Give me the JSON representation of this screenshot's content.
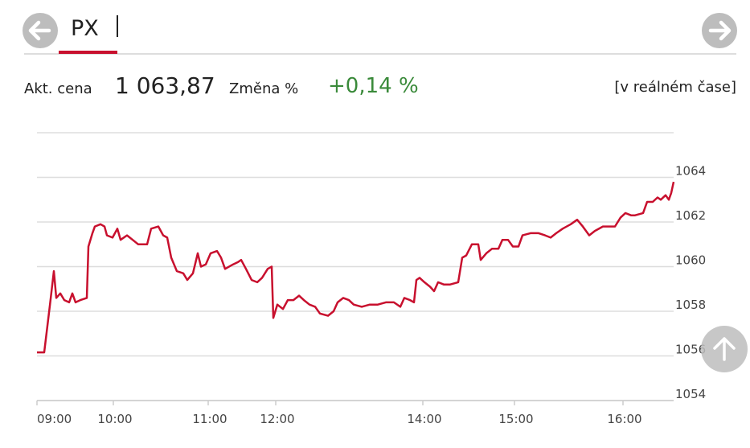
{
  "header": {
    "title": "PX",
    "price_label": "Akt. cena",
    "price": "1 063,87",
    "change_label": "Změna %",
    "change": "+0,14 %",
    "realtime": "[v reálném čase]"
  },
  "chart_data": {
    "type": "line",
    "color": "#c8102e",
    "grid": true,
    "x": [
      0,
      9,
      16,
      21,
      24,
      29,
      34,
      40,
      44,
      48,
      54,
      62,
      64,
      69,
      72,
      79,
      84,
      87,
      94,
      100,
      104,
      112,
      119,
      126,
      137,
      142,
      151,
      157,
      162,
      167,
      174,
      182,
      187,
      194,
      200,
      204,
      210,
      216,
      224,
      229,
      234,
      244,
      250,
      254,
      260,
      267,
      274,
      280,
      287,
      292,
      294,
      299,
      306,
      312,
      319,
      326,
      332,
      339,
      346,
      352,
      362,
      369,
      374,
      381,
      388,
      394,
      404,
      414,
      424,
      434,
      444,
      452,
      457,
      464,
      469,
      472,
      476,
      482,
      489,
      494,
      499,
      506,
      514,
      524,
      529,
      534,
      541,
      549,
      552,
      559,
      566,
      574,
      579,
      586,
      592,
      599,
      604,
      614,
      624,
      632,
      639,
      646,
      654,
      664,
      672,
      679,
      687,
      694,
      704,
      712,
      719,
      726,
      732,
      739,
      744,
      754,
      759,
      766,
      772,
      776,
      782,
      786,
      789,
      792
    ],
    "values": [
      1056.16,
      1056.16,
      1058.25,
      1059.8,
      1058.6,
      1058.8,
      1058.5,
      1058.4,
      1058.8,
      1058.4,
      1058.5,
      1058.6,
      1060.9,
      1061.5,
      1061.8,
      1061.9,
      1061.8,
      1061.4,
      1061.3,
      1061.7,
      1061.2,
      1061.4,
      1061.2,
      1061.0,
      1061.0,
      1061.7,
      1061.8,
      1061.4,
      1061.3,
      1060.4,
      1059.8,
      1059.7,
      1059.4,
      1059.7,
      1060.6,
      1060.0,
      1060.1,
      1060.6,
      1060.7,
      1060.4,
      1059.9,
      1060.1,
      1060.2,
      1060.3,
      1059.9,
      1059.4,
      1059.3,
      1059.5,
      1059.9,
      1060.0,
      1057.7,
      1058.3,
      1058.1,
      1058.5,
      1058.5,
      1058.7,
      1058.5,
      1058.3,
      1058.2,
      1057.9,
      1057.8,
      1058.0,
      1058.4,
      1058.6,
      1058.5,
      1058.3,
      1058.2,
      1058.3,
      1058.3,
      1058.4,
      1058.4,
      1058.2,
      1058.6,
      1058.5,
      1058.4,
      1059.4,
      1059.5,
      1059.3,
      1059.1,
      1058.9,
      1059.3,
      1059.2,
      1059.2,
      1059.3,
      1060.4,
      1060.5,
      1061.0,
      1061.0,
      1060.3,
      1060.6,
      1060.8,
      1060.8,
      1061.2,
      1061.2,
      1060.9,
      1060.9,
      1061.4,
      1061.5,
      1061.5,
      1061.4,
      1061.3,
      1061.5,
      1061.7,
      1061.9,
      1062.1,
      1061.8,
      1061.4,
      1061.6,
      1061.8,
      1061.8,
      1061.8,
      1062.2,
      1062.4,
      1062.3,
      1062.3,
      1062.4,
      1062.9,
      1062.9,
      1063.1,
      1063.0,
      1063.2,
      1063.0,
      1063.3,
      1063.8
    ],
    "xlim": [
      0,
      792
    ],
    "xticks": [
      {
        "value": 0,
        "label": "09:00"
      },
      {
        "value": 95,
        "label": "10:00"
      },
      {
        "value": 213,
        "label": "11:00"
      },
      {
        "value": 297,
        "label": "12:00"
      },
      {
        "value": 480,
        "label": "14:00"
      },
      {
        "value": 594,
        "label": "15:00"
      },
      {
        "value": 729,
        "label": "16:00"
      }
    ],
    "ylim": [
      1054,
      1066
    ],
    "yticks": [
      1054,
      1056,
      1058,
      1060,
      1062,
      1064
    ]
  }
}
